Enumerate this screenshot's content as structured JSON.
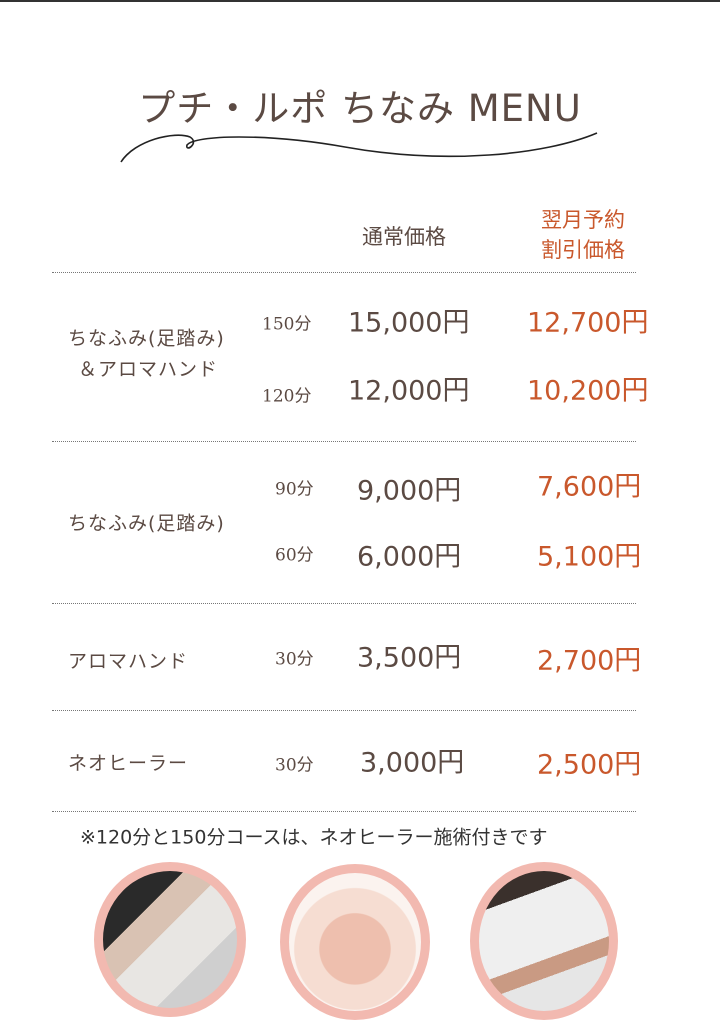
{
  "title": "プチ・ルポ ちなみ MENU",
  "headers": {
    "regular": "通常価格",
    "discount_line1": "翌月予約",
    "discount_line2": "割引価格"
  },
  "colors": {
    "text": "#5b4a43",
    "accent": "#c9582c",
    "frame": "#f2b9b0"
  },
  "groups": [
    {
      "label_lines": [
        "ちなふみ(足踏み)",
        "＆アロマハンド"
      ],
      "rows": [
        {
          "duration": "150分",
          "regular": "15,000円",
          "discount": "12,700円"
        },
        {
          "duration": "120分",
          "regular": "12,000円",
          "discount": "10,200円"
        }
      ]
    },
    {
      "label_lines": [
        "ちなふみ(足踏み)"
      ],
      "rows": [
        {
          "duration": "90分",
          "regular": "9,000円",
          "discount": "7,600円"
        },
        {
          "duration": "60分",
          "regular": "6,000円",
          "discount": "5,100円"
        }
      ]
    },
    {
      "label_lines": [
        "アロマハンド"
      ],
      "rows": [
        {
          "duration": "30分",
          "regular": "3,500円",
          "discount": "2,700円"
        }
      ]
    },
    {
      "label_lines": [
        "ネオヒーラー"
      ],
      "rows": [
        {
          "duration": "30分",
          "regular": "3,000円",
          "discount": "2,500円"
        }
      ]
    }
  ],
  "note": "※120分と150分コースは、ネオヒーラー施術付きです",
  "photos": [
    "foot-massage-photo",
    "hand-massage-photo",
    "neo-healer-photo"
  ]
}
